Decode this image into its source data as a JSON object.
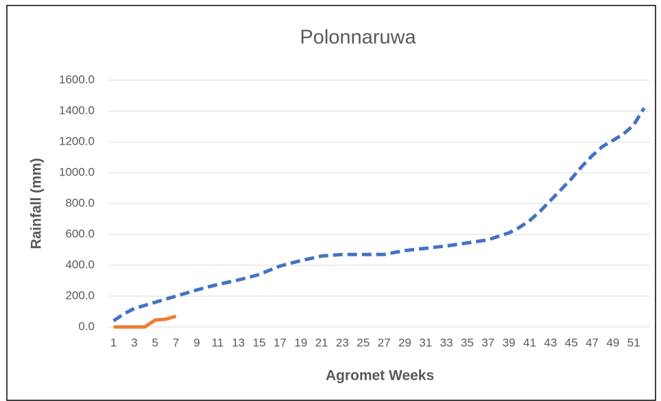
{
  "chart_data": {
    "type": "line",
    "title": "Polonnaruwa",
    "x_label": "Agromet Weeks",
    "y_label": "Rainfall (mm)",
    "categories": [
      "1",
      null,
      "3",
      null,
      "5",
      null,
      "7",
      null,
      "9",
      null,
      "11",
      null,
      "13",
      null,
      "15",
      null,
      "17",
      null,
      "19",
      null,
      "21",
      null,
      "23",
      null,
      "25",
      null,
      "27",
      null,
      "29",
      null,
      "31",
      null,
      "33",
      null,
      "35",
      null,
      "37",
      null,
      "39",
      null,
      "41",
      null,
      "43",
      null,
      "45",
      null,
      "47",
      null,
      "49",
      null,
      "51",
      null
    ],
    "series": [
      {
        "color": "#4472c4",
        "dash": "dashed",
        "values": [
          40,
          85,
          120,
          140,
          160,
          180,
          200,
          220,
          240,
          258,
          275,
          290,
          305,
          322,
          340,
          368,
          395,
          413,
          430,
          445,
          460,
          465,
          470,
          470,
          470,
          470,
          470,
          483,
          495,
          503,
          510,
          518,
          525,
          535,
          545,
          555,
          565,
          588,
          610,
          645,
          690,
          750,
          820,
          890,
          960,
          1040,
          1110,
          1170,
          1210,
          1250,
          1310,
          1420
        ]
      },
      {
        "color": "#ed7d31",
        "dash": "solid",
        "values": [
          0,
          0,
          0,
          0,
          45,
          50,
          70,
          null,
          null,
          null,
          null,
          null,
          null,
          null,
          null,
          null,
          null,
          null,
          null,
          null,
          null,
          null,
          null,
          null,
          null,
          null,
          null,
          null,
          null,
          null,
          null,
          null,
          null,
          null,
          null,
          null,
          null,
          null,
          null,
          null,
          null,
          null,
          null,
          null,
          null,
          null,
          null,
          null,
          null,
          null,
          null,
          null
        ]
      }
    ],
    "ylim": [
      0,
      1600
    ],
    "yticks": [
      {
        "value": 0,
        "label": "0.0"
      },
      {
        "value": 200,
        "label": "200.0"
      },
      {
        "value": 400,
        "label": "400.0"
      },
      {
        "value": 600,
        "label": "600.0"
      },
      {
        "value": 800,
        "label": "800.0"
      },
      {
        "value": 1000,
        "label": "1000.0"
      },
      {
        "value": 1200,
        "label": "1200.0"
      },
      {
        "value": 1400,
        "label": "1400.0"
      },
      {
        "value": 1600,
        "label": "1600.0"
      }
    ],
    "grid": true
  }
}
